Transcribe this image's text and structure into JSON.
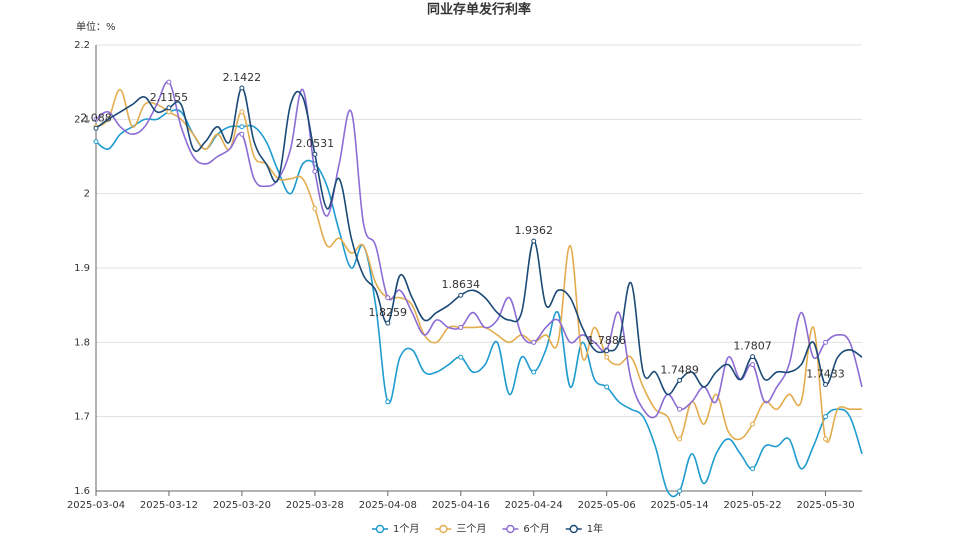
{
  "chart_data": {
    "type": "line",
    "title": "同业存单发行利率",
    "y_label": "单位：%",
    "categories": [
      "2025-03-04",
      null,
      null,
      null,
      null,
      null,
      "2025-03-12",
      null,
      null,
      null,
      null,
      null,
      "2025-03-20",
      null,
      null,
      null,
      null,
      null,
      "2025-03-28",
      null,
      null,
      null,
      null,
      null,
      "2025-04-08",
      null,
      null,
      null,
      null,
      null,
      "2025-04-16",
      null,
      null,
      null,
      null,
      null,
      "2025-04-24",
      null,
      null,
      null,
      null,
      null,
      "2025-05-06",
      null,
      null,
      null,
      null,
      null,
      "2025-05-14",
      null,
      null,
      null,
      null,
      null,
      "2025-05-22",
      null,
      null,
      null,
      null,
      null,
      "2025-05-30",
      null,
      null,
      null
    ],
    "ylim": [
      1.6,
      2.2
    ],
    "yticks": [
      1.6,
      1.7,
      1.8,
      1.9,
      2,
      2.1,
      2.2
    ],
    "grid": true,
    "smooth": true,
    "legend": "bottom",
    "series": [
      {
        "name": "1个月",
        "color": "#1f9bcf",
        "values": [
          2.07,
          2.06,
          2.08,
          2.09,
          2.1,
          2.1,
          2.11,
          2.11,
          2.08,
          2.06,
          2.08,
          2.09,
          2.09,
          2.09,
          2.07,
          2.03,
          2.0,
          2.04,
          2.04,
          2.01,
          1.95,
          1.9,
          1.93,
          1.85,
          1.72,
          1.78,
          1.79,
          1.76,
          1.76,
          1.77,
          1.78,
          1.76,
          1.77,
          1.8,
          1.73,
          1.78,
          1.76,
          1.79,
          1.84,
          1.74,
          1.8,
          1.75,
          1.74,
          1.72,
          1.71,
          1.7,
          1.66,
          1.6,
          1.6,
          1.65,
          1.61,
          1.65,
          1.67,
          1.65,
          1.63,
          1.66,
          1.66,
          1.67,
          1.63,
          1.66,
          1.7,
          1.71,
          1.7,
          1.65
        ]
      },
      {
        "name": "三个月",
        "color": "#e3ad4f",
        "values": [
          2.09,
          2.1,
          2.14,
          2.09,
          2.12,
          2.12,
          2.11,
          2.1,
          2.08,
          2.06,
          2.08,
          2.06,
          2.11,
          2.05,
          2.04,
          2.02,
          2.02,
          2.02,
          1.98,
          1.93,
          1.94,
          1.92,
          1.93,
          1.88,
          1.86,
          1.86,
          1.85,
          1.81,
          1.8,
          1.82,
          1.82,
          1.82,
          1.82,
          1.81,
          1.8,
          1.81,
          1.8,
          1.81,
          1.8,
          1.93,
          1.78,
          1.82,
          1.78,
          1.77,
          1.78,
          1.74,
          1.71,
          1.7,
          1.67,
          1.72,
          1.69,
          1.73,
          1.68,
          1.67,
          1.69,
          1.72,
          1.71,
          1.73,
          1.72,
          1.82,
          1.67,
          1.71,
          1.71,
          1.71
        ]
      },
      {
        "name": "6个月",
        "color": "#8c6cd5",
        "values": [
          2.1,
          2.11,
          2.09,
          2.08,
          2.09,
          2.12,
          2.15,
          2.09,
          2.05,
          2.04,
          2.05,
          2.06,
          2.08,
          2.02,
          2.01,
          2.02,
          2.06,
          2.14,
          2.03,
          1.97,
          2.04,
          2.11,
          1.96,
          1.93,
          1.86,
          1.87,
          1.84,
          1.81,
          1.83,
          1.82,
          1.82,
          1.84,
          1.82,
          1.83,
          1.86,
          1.81,
          1.8,
          1.82,
          1.83,
          1.8,
          1.81,
          1.8,
          1.79,
          1.84,
          1.75,
          1.71,
          1.7,
          1.73,
          1.71,
          1.72,
          1.74,
          1.72,
          1.78,
          1.75,
          1.77,
          1.72,
          1.74,
          1.77,
          1.84,
          1.78,
          1.8,
          1.81,
          1.8,
          1.74
        ]
      },
      {
        "name": "1年",
        "color": "#1b4a76",
        "values": [
          2.088,
          2.1,
          2.11,
          2.12,
          2.13,
          2.11,
          2.1155,
          2.12,
          2.06,
          2.07,
          2.09,
          2.07,
          2.1422,
          2.07,
          2.04,
          2.02,
          2.12,
          2.13,
          2.0531,
          1.98,
          2.02,
          1.94,
          1.89,
          1.87,
          1.8259,
          1.89,
          1.86,
          1.83,
          1.84,
          1.85,
          1.8634,
          1.87,
          1.86,
          1.84,
          1.83,
          1.84,
          1.9362,
          1.85,
          1.87,
          1.86,
          1.82,
          1.79,
          1.7886,
          1.8,
          1.88,
          1.76,
          1.76,
          1.73,
          1.7489,
          1.76,
          1.74,
          1.76,
          1.77,
          1.75,
          1.7807,
          1.75,
          1.76,
          1.76,
          1.77,
          1.8,
          1.7433,
          1.78,
          1.79,
          1.78
        ],
        "value_labels": [
          "2.088",
          null,
          null,
          null,
          null,
          null,
          "2.1155",
          null,
          null,
          null,
          null,
          null,
          "2.1422",
          null,
          null,
          null,
          null,
          null,
          "2.0531",
          null,
          null,
          null,
          null,
          null,
          "1.8259",
          null,
          null,
          null,
          null,
          null,
          "1.8634",
          null,
          null,
          null,
          null,
          null,
          "1.9362",
          null,
          null,
          null,
          null,
          null,
          "1.7886",
          null,
          null,
          null,
          null,
          null,
          "1.7489",
          null,
          null,
          null,
          null,
          null,
          "1.7807",
          null,
          null,
          null,
          null,
          null,
          "1.7433",
          null,
          null,
          null
        ]
      }
    ]
  }
}
